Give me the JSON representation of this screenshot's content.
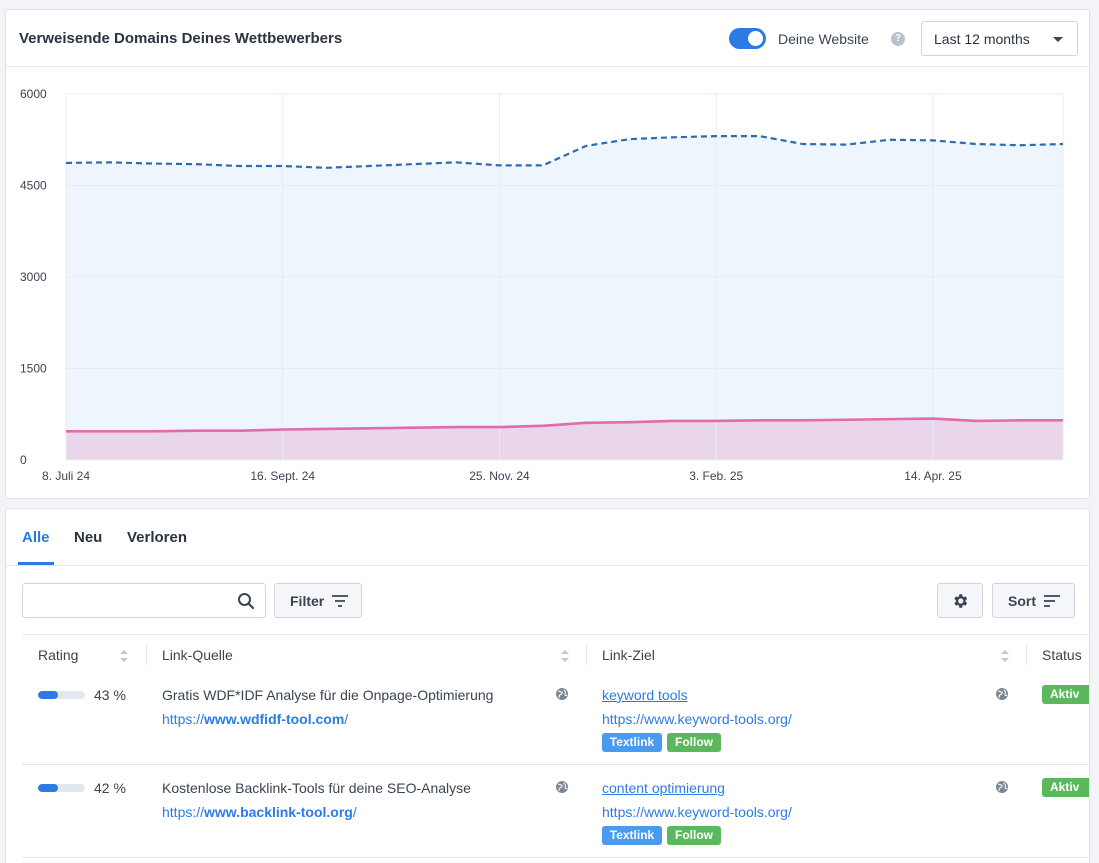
{
  "chart_card": {
    "title": "Verweisende Domains Deines Wettbewerbers",
    "toggle_label": "Deine Website",
    "toggle_on": true,
    "help_icon": "question-circle-icon",
    "range_value": "Last 12 months"
  },
  "chart_data": {
    "type": "area",
    "x": [
      "8. Juli 24",
      "22. Juli 24",
      "5. Aug. 24",
      "19. Aug. 24",
      "2. Sept. 24",
      "16. Sept. 24",
      "30. Sept. 24",
      "14. Okt. 24",
      "28. Okt. 24",
      "11. Nov. 24",
      "25. Nov. 24",
      "9. Dez. 24",
      "23. Dez. 24",
      "6. Jan. 25",
      "20. Jan. 25",
      "3. Feb. 25",
      "17. Feb. 25",
      "3. März 25",
      "17. März 25",
      "31. März 25",
      "14. Apr. 25",
      "28. Apr. 25",
      "12. Mai 25",
      "26. Mai 25"
    ],
    "x_tick_labels": [
      "8. Juli 24",
      "16. Sept. 24",
      "25. Nov. 24",
      "3. Feb. 25",
      "14. Apr. 25"
    ],
    "series": [
      {
        "color": "#2a6db0",
        "fill": "#eef5fd",
        "style": "dashed",
        "values": [
          4870,
          4880,
          4860,
          4850,
          4820,
          4820,
          4790,
          4820,
          4850,
          4880,
          4830,
          4830,
          5150,
          5260,
          5290,
          5310,
          5310,
          5180,
          5170,
          5250,
          5240,
          5180,
          5160,
          5180
        ]
      },
      {
        "color": "#e06bad",
        "fill": "#ead6eb",
        "style": "solid",
        "values": [
          470,
          470,
          470,
          480,
          480,
          500,
          510,
          520,
          530,
          540,
          540,
          560,
          610,
          620,
          640,
          640,
          650,
          650,
          660,
          670,
          680,
          640,
          650,
          650
        ]
      }
    ],
    "ylim": [
      0,
      6000
    ],
    "yticks": [
      0,
      1500,
      3000,
      4500,
      6000
    ],
    "grid": true
  },
  "table_card": {
    "tabs": [
      {
        "label": "Alle",
        "active": true
      },
      {
        "label": "Neu",
        "active": false
      },
      {
        "label": "Verloren",
        "active": false
      }
    ],
    "search_placeholder": "",
    "filter_label": "Filter",
    "sort_label": "Sort",
    "columns": [
      "Rating",
      "Link-Quelle",
      "Link-Ziel",
      "Status"
    ],
    "rows": [
      {
        "rating": 0.43,
        "rating_label": "43 %",
        "source_title": "Gratis WDF*IDF Analyse für die Onpage-Optimierung",
        "source_url_prefix": "https://",
        "source_url_domain": "www.wdfidf-tool.com",
        "source_url_suffix": "/",
        "target_anchor": "keyword tools",
        "target_url": "https://www.keyword-tools.org/",
        "badge_type": "Textlink",
        "badge_follow": "Follow",
        "status": "Aktiv"
      },
      {
        "rating": 0.42,
        "rating_label": "42 %",
        "source_title": "Kostenlose Backlink-Tools für deine SEO-Analyse",
        "source_url_prefix": "https://",
        "source_url_domain": "www.backlink-tool.org",
        "source_url_suffix": "/",
        "target_anchor": "content optimierung",
        "target_url": "https://www.keyword-tools.org/",
        "badge_type": "Textlink",
        "badge_follow": "Follow",
        "status": "Aktiv"
      }
    ]
  }
}
